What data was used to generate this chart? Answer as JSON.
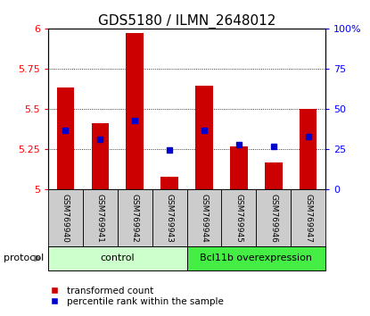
{
  "title": "GDS5180 / ILMN_2648012",
  "samples": [
    "GSM769940",
    "GSM769941",
    "GSM769942",
    "GSM769943",
    "GSM769944",
    "GSM769945",
    "GSM769946",
    "GSM769947"
  ],
  "red_bar_heights": [
    5.635,
    5.41,
    5.97,
    5.08,
    5.645,
    5.27,
    5.17,
    5.5
  ],
  "blue_square_values": [
    5.37,
    5.31,
    5.43,
    5.245,
    5.37,
    5.28,
    5.27,
    5.33
  ],
  "y_min": 5.0,
  "y_max": 6.0,
  "y_ticks_left": [
    5.0,
    5.25,
    5.5,
    5.75,
    6.0
  ],
  "y_tick_left_labels": [
    "5",
    "5.25",
    "5.5",
    "5.75",
    "6"
  ],
  "y_ticks_right_labels": [
    "0",
    "25",
    "50",
    "75",
    "100%"
  ],
  "groups": [
    {
      "label": "control",
      "start": 0,
      "end": 4,
      "color": "#ccffcc"
    },
    {
      "label": "Bcl11b overexpression",
      "start": 4,
      "end": 8,
      "color": "#44ee44"
    }
  ],
  "bar_color": "#cc0000",
  "blue_color": "#0000cc",
  "bar_width": 0.5,
  "protocol_label": "protocol",
  "legend_red_label": "transformed count",
  "legend_blue_label": "percentile rank within the sample",
  "title_fontsize": 11,
  "tick_fontsize": 8,
  "label_fontsize": 8
}
